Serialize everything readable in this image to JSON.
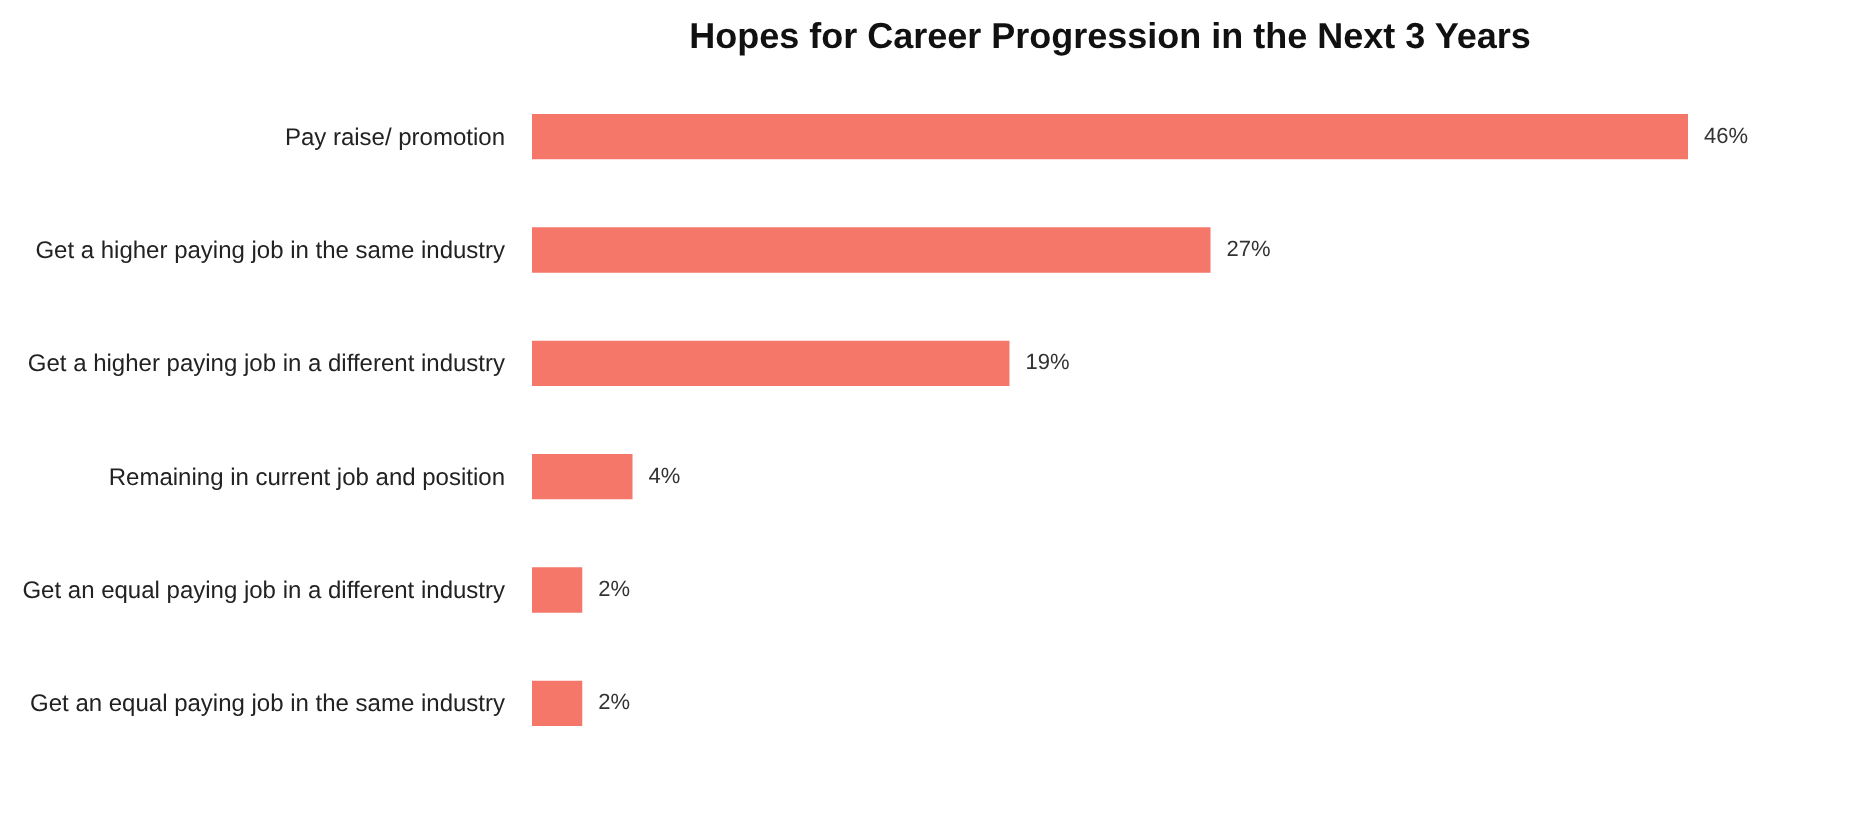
{
  "chart_data": {
    "type": "bar",
    "orientation": "horizontal",
    "title": "Hopes for Career Progression in the Next 3 Years",
    "categories": [
      "Pay raise/ promotion",
      "Get a higher paying job in the same industry",
      "Get a higher paying job in a different industry",
      "Remaining in current job and position",
      "Get an equal paying job in a different industry",
      "Get an equal paying job in the same industry"
    ],
    "values": [
      46,
      27,
      19,
      4,
      2,
      2
    ],
    "value_labels": [
      "46%",
      "27%",
      "19%",
      "4%",
      "2%",
      "2%"
    ],
    "color": "#f4776a"
  }
}
